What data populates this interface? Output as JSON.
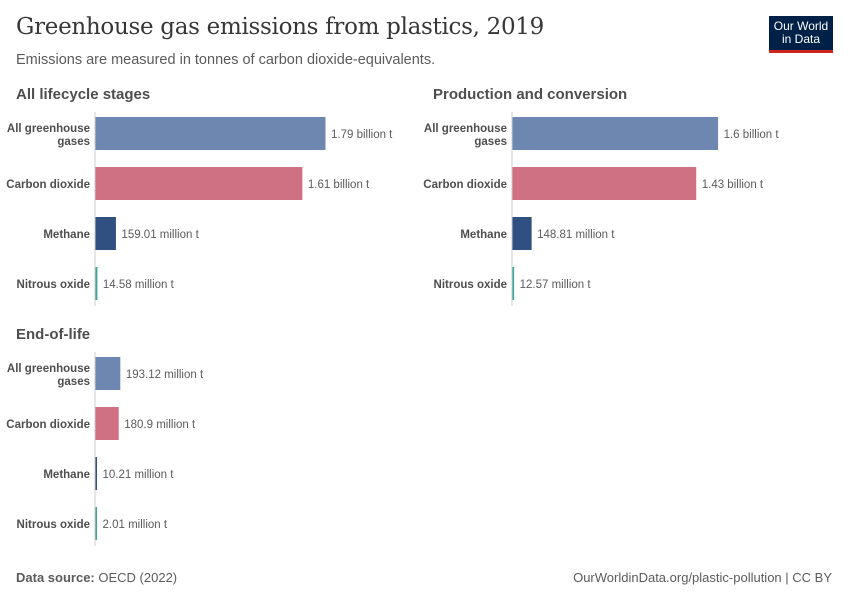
{
  "header": {
    "title": "Greenhouse gas emissions from plastics, 2019",
    "subtitle": "Emissions are measured in tonnes of carbon dioxide-equivalents.",
    "logo_line1": "Our World",
    "logo_line2": "in Data"
  },
  "footer": {
    "source_label": "Data source:",
    "source": "OECD (2022)",
    "url": "OurWorldinData.org/plastic-pollution | CC BY"
  },
  "colors": {
    "All greenhouse gases": "#6d87b0",
    "Carbon dioxide": "#cf7182",
    "Methane": "#2f5080",
    "Nitrous oxide": "#3aa59b"
  },
  "chart_data": [
    {
      "type": "bar",
      "orientation": "horizontal",
      "title": "All lifecycle stages",
      "unit": "t",
      "categories": [
        "All greenhouse gases",
        "Carbon dioxide",
        "Methane",
        "Nitrous oxide"
      ],
      "values": [
        1790000000,
        1610000000,
        159010000,
        14580000
      ],
      "labels": [
        "1.79 billion t",
        "1.61 billion t",
        "159.01 million t",
        "14.58 million t"
      ]
    },
    {
      "type": "bar",
      "orientation": "horizontal",
      "title": "Production and conversion",
      "unit": "t",
      "categories": [
        "All greenhouse gases",
        "Carbon dioxide",
        "Methane",
        "Nitrous oxide"
      ],
      "values": [
        1600000000,
        1430000000,
        148810000,
        12570000
      ],
      "labels": [
        "1.6 billion t",
        "1.43 billion t",
        "148.81 million t",
        "12.57 million t"
      ]
    },
    {
      "type": "bar",
      "orientation": "horizontal",
      "title": "End-of-life",
      "unit": "t",
      "categories": [
        "All greenhouse gases",
        "Carbon dioxide",
        "Methane",
        "Nitrous oxide"
      ],
      "values": [
        193120000,
        180900000,
        10210000,
        2010000
      ],
      "labels": [
        "193.12 million t",
        "180.9 million t",
        "10.21 million t",
        "2.01 million t"
      ]
    }
  ]
}
